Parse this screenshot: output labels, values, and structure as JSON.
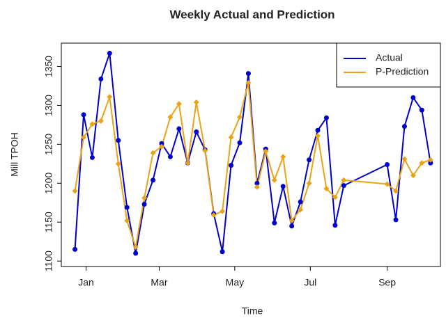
{
  "chart_data": {
    "type": "line",
    "title": "Weekly Actual and Prediction",
    "x_label": "Time",
    "y_label": "Mill TPOH",
    "x": [
      -9,
      -2,
      5,
      12,
      19,
      26,
      33,
      40,
      47,
      54,
      61,
      68,
      75,
      82,
      89,
      96,
      103,
      110,
      117,
      124,
      131,
      138,
      145,
      152,
      159,
      166,
      173,
      180,
      187,
      194,
      201,
      208,
      243,
      250,
      257,
      264,
      271,
      278
    ],
    "series": [
      {
        "name": "Actual",
        "color": "#0000cd",
        "marker": "circle",
        "values": [
          1115,
          1288,
          1233,
          1334,
          1367,
          1255,
          1169,
          1110,
          1173,
          1204,
          1251,
          1234,
          1270,
          1226,
          1266,
          1243,
          1161,
          1112,
          1223,
          1252,
          1341,
          1200,
          1244,
          1149,
          1196,
          1145,
          1176,
          1230,
          1268,
          1284,
          1146,
          1197,
          1224,
          1153,
          1273,
          1310,
          1294,
          1226
        ]
      },
      {
        "name": "P-Prediction",
        "color": "#e8a317",
        "marker": "diamond",
        "values": [
          1190,
          1259,
          1276,
          1280,
          1311,
          1225,
          1152,
          1118,
          1181,
          1239,
          1247,
          1285,
          1302,
          1226,
          1304,
          1242,
          1159,
          1164,
          1259,
          1285,
          1329,
          1195,
          1241,
          1204,
          1234,
          1152,
          1166,
          1200,
          1261,
          1193,
          1182,
          1204,
          1199,
          1190,
          1231,
          1210,
          1226,
          1230
        ]
      }
    ],
    "xlim": [
      -20,
      286
    ],
    "xticks": [
      {
        "value": 0,
        "label": "Jan"
      },
      {
        "value": 59,
        "label": "Mar"
      },
      {
        "value": 120,
        "label": "May"
      },
      {
        "value": 181,
        "label": "Jul"
      },
      {
        "value": 243,
        "label": "Sep"
      }
    ],
    "ylim": [
      1093,
      1380
    ],
    "yticks": [
      1100,
      1150,
      1200,
      1250,
      1300,
      1350
    ],
    "legend": "top-right"
  }
}
